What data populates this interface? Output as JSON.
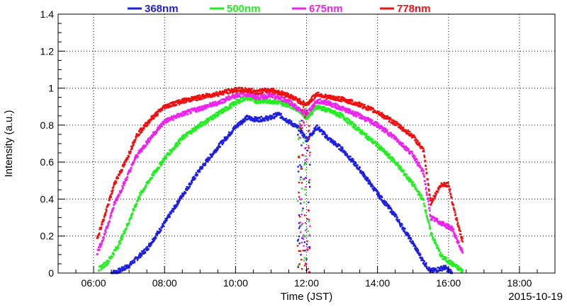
{
  "chart_data": {
    "type": "scatter",
    "title": "",
    "xlabel": "Time (JST)",
    "ylabel": "Intensity (a.u.)",
    "date_label": "2015-10-19",
    "x_unit": "hours (JST)",
    "xlim": [
      5.0,
      19.0
    ],
    "ylim": [
      0,
      1.4
    ],
    "x_ticks": [
      6,
      8,
      10,
      12,
      14,
      16,
      18
    ],
    "x_tick_labels": [
      "06:00",
      "08:00",
      "10:00",
      "12:00",
      "14:00",
      "16:00",
      "18:00"
    ],
    "y_ticks": [
      0,
      0.2,
      0.4,
      0.6,
      0.8,
      1.0,
      1.2,
      1.4
    ],
    "y_tick_labels": [
      "0",
      "0.2",
      "0.4",
      "0.6",
      "0.8",
      "1",
      "1.2",
      "1.4"
    ],
    "grid": true,
    "legend_position": "top",
    "series": [
      {
        "name": "368nm",
        "color": "#1f1fe0",
        "points": [
          [
            6.5,
            0.0
          ],
          [
            6.7,
            0.01
          ],
          [
            7.0,
            0.04
          ],
          [
            7.5,
            0.13
          ],
          [
            8.0,
            0.27
          ],
          [
            8.5,
            0.42
          ],
          [
            9.0,
            0.56
          ],
          [
            9.5,
            0.68
          ],
          [
            10.0,
            0.79
          ],
          [
            10.3,
            0.84
          ],
          [
            10.6,
            0.83
          ],
          [
            11.0,
            0.84
          ],
          [
            11.2,
            0.86
          ],
          [
            11.5,
            0.82
          ],
          [
            11.8,
            0.78
          ],
          [
            12.0,
            0.72
          ],
          [
            12.3,
            0.79
          ],
          [
            12.6,
            0.73
          ],
          [
            13.0,
            0.67
          ],
          [
            13.5,
            0.56
          ],
          [
            14.0,
            0.43
          ],
          [
            14.5,
            0.31
          ],
          [
            15.0,
            0.16
          ],
          [
            15.3,
            0.06
          ],
          [
            15.5,
            0.01
          ],
          [
            15.9,
            0.03
          ],
          [
            16.1,
            0.0
          ]
        ]
      },
      {
        "name": "500nm",
        "color": "#22ee22",
        "points": [
          [
            6.15,
            0.02
          ],
          [
            6.4,
            0.06
          ],
          [
            6.7,
            0.15
          ],
          [
            7.0,
            0.28
          ],
          [
            7.3,
            0.42
          ],
          [
            7.6,
            0.51
          ],
          [
            8.0,
            0.62
          ],
          [
            8.5,
            0.73
          ],
          [
            9.0,
            0.8
          ],
          [
            9.5,
            0.86
          ],
          [
            10.0,
            0.92
          ],
          [
            10.3,
            0.95
          ],
          [
            10.6,
            0.93
          ],
          [
            11.0,
            0.93
          ],
          [
            11.5,
            0.91
          ],
          [
            11.8,
            0.88
          ],
          [
            12.0,
            0.84
          ],
          [
            12.3,
            0.9
          ],
          [
            12.6,
            0.88
          ],
          [
            13.0,
            0.85
          ],
          [
            13.5,
            0.77
          ],
          [
            14.0,
            0.69
          ],
          [
            14.5,
            0.6
          ],
          [
            15.0,
            0.48
          ],
          [
            15.3,
            0.39
          ],
          [
            15.5,
            0.22
          ],
          [
            15.8,
            0.09
          ],
          [
            16.1,
            0.05
          ],
          [
            16.4,
            0.01
          ]
        ]
      },
      {
        "name": "675nm",
        "color": "#ee22ee",
        "points": [
          [
            6.1,
            0.11
          ],
          [
            6.3,
            0.2
          ],
          [
            6.6,
            0.38
          ],
          [
            6.9,
            0.5
          ],
          [
            7.2,
            0.63
          ],
          [
            7.6,
            0.73
          ],
          [
            8.0,
            0.82
          ],
          [
            8.5,
            0.86
          ],
          [
            9.0,
            0.89
          ],
          [
            9.5,
            0.92
          ],
          [
            10.0,
            0.96
          ],
          [
            10.3,
            0.97
          ],
          [
            10.6,
            0.95
          ],
          [
            11.0,
            0.96
          ],
          [
            11.5,
            0.93
          ],
          [
            11.8,
            0.88
          ],
          [
            12.0,
            0.86
          ],
          [
            12.3,
            0.93
          ],
          [
            12.6,
            0.92
          ],
          [
            13.0,
            0.89
          ],
          [
            13.5,
            0.85
          ],
          [
            14.0,
            0.8
          ],
          [
            14.5,
            0.73
          ],
          [
            15.0,
            0.64
          ],
          [
            15.3,
            0.54
          ],
          [
            15.5,
            0.3
          ],
          [
            15.8,
            0.27
          ],
          [
            16.1,
            0.24
          ],
          [
            16.4,
            0.11
          ]
        ]
      },
      {
        "name": "778nm",
        "color": "#ee1111",
        "points": [
          [
            6.1,
            0.19
          ],
          [
            6.3,
            0.3
          ],
          [
            6.6,
            0.49
          ],
          [
            6.9,
            0.6
          ],
          [
            7.2,
            0.74
          ],
          [
            7.6,
            0.83
          ],
          [
            8.0,
            0.9
          ],
          [
            8.5,
            0.93
          ],
          [
            9.0,
            0.95
          ],
          [
            9.5,
            0.97
          ],
          [
            10.0,
            0.99
          ],
          [
            10.3,
            0.99
          ],
          [
            10.6,
            0.98
          ],
          [
            11.0,
            0.99
          ],
          [
            11.5,
            0.96
          ],
          [
            11.8,
            0.93
          ],
          [
            12.0,
            0.91
          ],
          [
            12.3,
            0.97
          ],
          [
            12.6,
            0.95
          ],
          [
            13.0,
            0.94
          ],
          [
            13.5,
            0.91
          ],
          [
            14.0,
            0.87
          ],
          [
            14.5,
            0.81
          ],
          [
            15.0,
            0.74
          ],
          [
            15.3,
            0.66
          ],
          [
            15.5,
            0.38
          ],
          [
            15.8,
            0.48
          ],
          [
            16.0,
            0.48
          ],
          [
            16.2,
            0.31
          ],
          [
            16.4,
            0.17
          ]
        ]
      }
    ]
  }
}
